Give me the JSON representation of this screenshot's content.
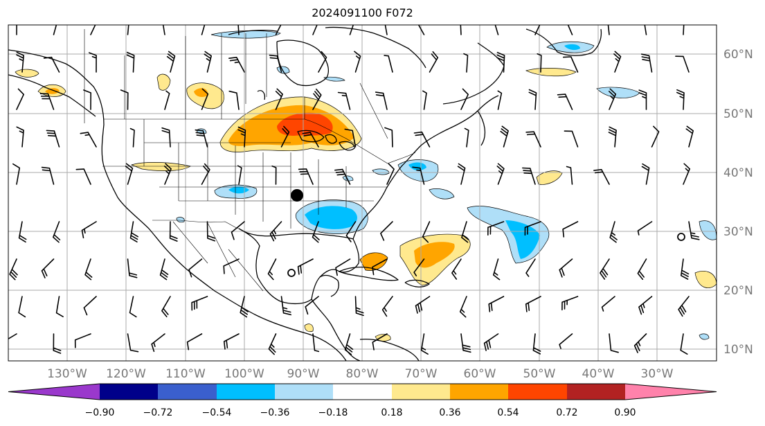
{
  "title": "2024091100 F072",
  "map": {
    "frame_color": "#000000",
    "grid_color": "#aaaaaa",
    "land_line_color": "#000000",
    "latitude_labels": [
      "60°N",
      "50°N",
      "40°N",
      "30°N",
      "20°N",
      "10°N"
    ],
    "longitude_labels": [
      "130°W",
      "120°W",
      "110°W",
      "100°W",
      "90°W",
      "80°W",
      "70°W",
      "60°W",
      "50°W",
      "40°W",
      "30°W"
    ],
    "markers": [
      {
        "name": "filled-circle-marker",
        "kind": "filled-circle",
        "lon": -90.2,
        "lat": 36.6
      },
      {
        "name": "open-circle-marker-gulf",
        "kind": "open-circle",
        "lon": -90.1,
        "lat": 23.2
      },
      {
        "name": "open-circle-marker-atlantic",
        "kind": "open-circle",
        "lon": -36.0,
        "lat": 29.5
      }
    ]
  },
  "colorbar": {
    "ticks": [
      "−0.90",
      "−0.72",
      "−0.54",
      "−0.36",
      "−0.18",
      "0.18",
      "0.36",
      "0.54",
      "0.72",
      "0.90"
    ],
    "colors": [
      "#9a38cc",
      "#00008a",
      "#3a5fcd",
      "#00bfff",
      "#afdff8",
      "#ffffff",
      "#ffe98e",
      "#ffa500",
      "#ff4500",
      "#b22222",
      "#ff82ab"
    ]
  }
}
